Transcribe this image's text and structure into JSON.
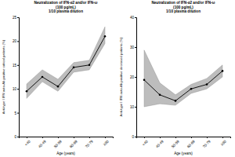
{
  "chart_data": [
    {
      "type": "line",
      "title": [
        "Neutralization of IFN-α2 and/or IFN-ω",
        "(100 pg/mL)",
        "1/10 plasma dilution"
      ],
      "x_label": "Age (years)",
      "y_label": "Anti-type I IFN auto-Ab positive critical patients (%)",
      "categories": [
        "<40",
        "40-49",
        "50-59",
        "60-69",
        "70-79",
        "≥80"
      ],
      "series": [
        {
          "color": "#000000",
          "band_color": "#bdbdbd",
          "marker": "circle",
          "values": [
            9.5,
            12.5,
            10.5,
            14.5,
            15,
            21
          ],
          "ci_lower": [
            8,
            11.5,
            9.5,
            13.5,
            14,
            19.5
          ],
          "ci_upper": [
            11,
            14,
            12,
            15.5,
            16,
            23
          ]
        }
      ],
      "ylim": [
        0,
        25
      ],
      "yticks": [
        0,
        5,
        10,
        15,
        20,
        25
      ],
      "grid": false
    },
    {
      "type": "line",
      "title": [
        "Neutralization of IFN-α2 and/or IFN-ω",
        "(100 pg/mL)",
        "1/10 plasma dilution"
      ],
      "x_label": "Age (years)",
      "y_label": "Anti-type I IFN auto-Ab positive deceased patients (%)",
      "categories": [
        "<40",
        "40-49",
        "50-59",
        "60-69",
        "70-79",
        "≥80"
      ],
      "series": [
        {
          "color": "#000000",
          "band_color": "#bdbdbd",
          "marker": "circle",
          "values": [
            19,
            14,
            12,
            16,
            17.5,
            22
          ],
          "ci_lower": [
            10,
            11,
            10.5,
            14.5,
            16,
            20
          ],
          "ci_upper": [
            29,
            18,
            14,
            17.5,
            19.5,
            24
          ]
        }
      ],
      "ylim": [
        0,
        40
      ],
      "yticks": [
        0,
        10,
        20,
        30,
        40
      ],
      "grid": false
    }
  ]
}
